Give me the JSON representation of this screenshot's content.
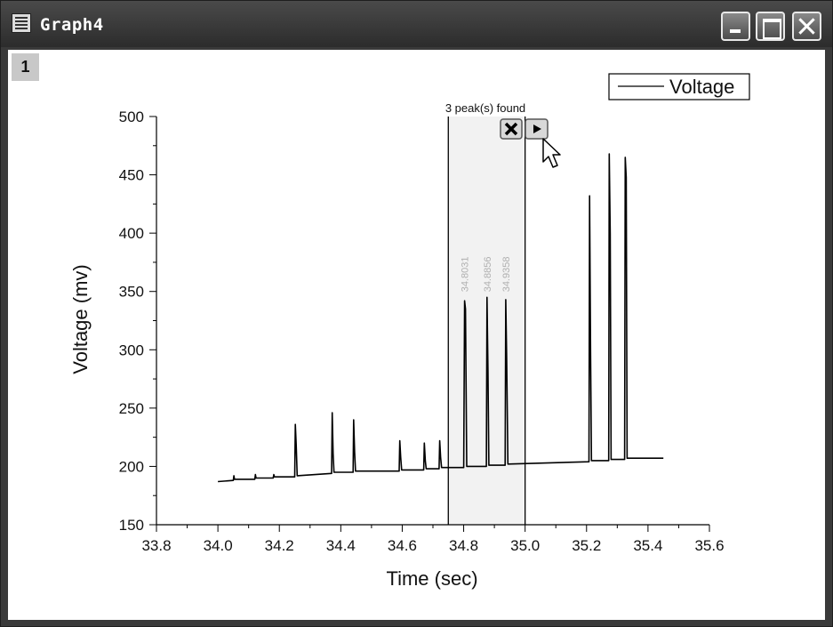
{
  "window": {
    "title": "Graph4",
    "layer_label": "1"
  },
  "peak_tool": {
    "status": "3 peak(s) found"
  },
  "chart_data": {
    "type": "line",
    "title": "",
    "xlabel": "Time (sec)",
    "ylabel": "Voltage (mv)",
    "xlim": [
      33.8,
      35.6
    ],
    "ylim": [
      150,
      500
    ],
    "xticks": [
      "33.8",
      "34.0",
      "34.2",
      "34.4",
      "34.6",
      "34.8",
      "35.0",
      "35.2",
      "35.4",
      "35.6"
    ],
    "yticks": [
      "150",
      "200",
      "250",
      "300",
      "350",
      "400",
      "450",
      "500"
    ],
    "legend": {
      "position": "top-right",
      "entries": [
        "Voltage"
      ]
    },
    "series": [
      {
        "name": "Voltage",
        "x": [
          34.0,
          34.05,
          34.052,
          34.054,
          34.12,
          34.122,
          34.124,
          34.18,
          34.182,
          34.184,
          34.25,
          34.252,
          34.255,
          34.258,
          34.37,
          34.372,
          34.375,
          34.378,
          34.44,
          34.442,
          34.445,
          34.448,
          34.59,
          34.592,
          34.595,
          34.598,
          34.67,
          34.672,
          34.675,
          34.678,
          34.72,
          34.722,
          34.725,
          34.728,
          34.8,
          34.803,
          34.806,
          34.81,
          34.874,
          34.876,
          34.879,
          34.882,
          34.935,
          34.937,
          34.94,
          34.944,
          35.208,
          35.21,
          35.213,
          35.216,
          35.272,
          35.274,
          35.277,
          35.28,
          35.324,
          35.326,
          35.329,
          35.332,
          35.45
        ],
        "y": [
          187,
          188,
          192,
          189,
          189,
          193,
          190,
          190,
          193,
          191,
          191,
          236,
          218,
          192,
          194,
          246,
          211,
          195,
          195,
          240,
          212,
          196,
          196,
          222,
          208,
          197,
          197,
          220,
          205,
          198,
          198,
          222,
          208,
          199,
          199,
          342,
          335,
          200,
          200,
          345,
          282,
          201,
          201,
          343,
          294,
          202,
          204,
          432,
          298,
          205,
          205,
          468,
          400,
          206,
          206,
          465,
          448,
          207,
          207
        ]
      }
    ],
    "highlight_region": {
      "x_start": 34.75,
      "x_end": 35.0
    },
    "peak_labels": [
      "34.8031",
      "34.8856",
      "34.9358"
    ],
    "peak_x": [
      34.803,
      34.876,
      34.937
    ]
  }
}
